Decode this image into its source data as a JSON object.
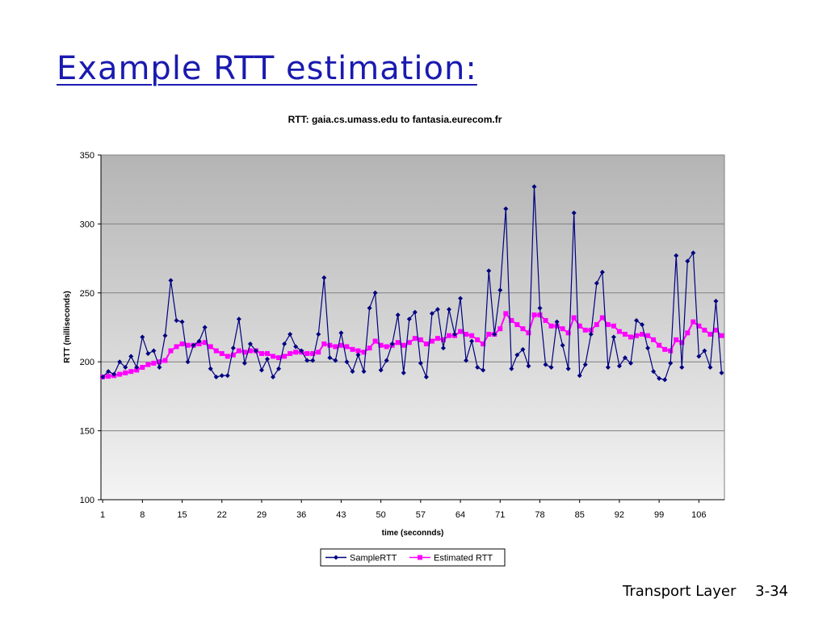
{
  "slide": {
    "title": "Example RTT estimation:",
    "footer_label": "Transport Layer",
    "page_number": "3-34"
  },
  "chart_data": {
    "type": "line",
    "title": "RTT: gaia.cs.umass.edu to fantasia.eurecom.fr",
    "xlabel": "time (seconnds)",
    "ylabel": "RTT (milliseconds)",
    "ylim": [
      100,
      350
    ],
    "yticks": [
      100,
      150,
      200,
      250,
      300,
      350
    ],
    "xticks": [
      1,
      8,
      15,
      22,
      29,
      36,
      43,
      50,
      57,
      64,
      71,
      78,
      85,
      92,
      99,
      106
    ],
    "grid": true,
    "legend": "bottom",
    "x": [
      1,
      2,
      3,
      4,
      5,
      6,
      7,
      8,
      9,
      10,
      11,
      12,
      13,
      14,
      15,
      16,
      17,
      18,
      19,
      20,
      21,
      22,
      23,
      24,
      25,
      26,
      27,
      28,
      29,
      30,
      31,
      32,
      33,
      34,
      35,
      36,
      37,
      38,
      39,
      40,
      41,
      42,
      43,
      44,
      45,
      46,
      47,
      48,
      49,
      50,
      51,
      52,
      53,
      54,
      55,
      56,
      57,
      58,
      59,
      60,
      61,
      62,
      63,
      64,
      65,
      66,
      67,
      68,
      69,
      70,
      71,
      72,
      73,
      74,
      75,
      76,
      77,
      78,
      79,
      80,
      81,
      82,
      83,
      84,
      85,
      86,
      87,
      88,
      89,
      90,
      91,
      92,
      93,
      94,
      95,
      96,
      97,
      98,
      99,
      100,
      101,
      102,
      103,
      104,
      105,
      106,
      107,
      108,
      109,
      110
    ],
    "series": [
      {
        "name": "SampleRTT",
        "color": "#000080",
        "marker": "diamond",
        "values": [
          189,
          193,
          191,
          200,
          196,
          204,
          196,
          218,
          206,
          208,
          196,
          219,
          259,
          230,
          229,
          200,
          212,
          215,
          225,
          195,
          189,
          190,
          190,
          210,
          231,
          199,
          213,
          208,
          194,
          202,
          189,
          195,
          213,
          220,
          211,
          208,
          201,
          201,
          220,
          261,
          203,
          201,
          221,
          200,
          193,
          205,
          193,
          239,
          250,
          194,
          201,
          213,
          234,
          192,
          231,
          236,
          199,
          189,
          235,
          238,
          210,
          238,
          220,
          246,
          201,
          215,
          196,
          194,
          266,
          220,
          252,
          311,
          195,
          205,
          209,
          197,
          327,
          239,
          198,
          196,
          229,
          212,
          195,
          308,
          190,
          198,
          220,
          257,
          265,
          196,
          218,
          197,
          203,
          199,
          230,
          227,
          210,
          193,
          188,
          187,
          199,
          277,
          196,
          273,
          279,
          204,
          208,
          196,
          244,
          192
        ]
      },
      {
        "name": "Estimated RTT",
        "color": "#ff00ff",
        "marker": "square",
        "values": [
          189,
          189.5,
          190,
          191,
          192,
          193,
          194,
          196,
          198,
          199,
          200,
          201,
          208,
          211,
          213,
          212,
          212,
          213,
          214,
          211,
          208,
          206,
          204,
          205,
          208,
          207,
          208,
          208,
          206,
          206,
          204,
          203,
          204,
          206,
          207,
          207,
          206,
          206,
          207,
          213,
          212,
          211,
          212,
          211,
          209,
          208,
          207,
          210,
          215,
          212,
          211,
          212,
          214,
          212,
          214,
          217,
          216,
          213,
          215,
          217,
          216,
          219,
          219,
          222,
          220,
          219,
          216,
          213,
          220,
          220,
          224,
          235,
          230,
          227,
          224,
          221,
          234,
          234,
          230,
          226,
          226,
          224,
          221,
          232,
          226,
          223,
          223,
          227,
          232,
          227,
          226,
          222,
          220,
          218,
          219,
          220,
          219,
          216,
          212,
          209,
          208,
          216,
          214,
          221,
          229,
          226,
          223,
          220,
          223,
          219
        ]
      }
    ]
  }
}
